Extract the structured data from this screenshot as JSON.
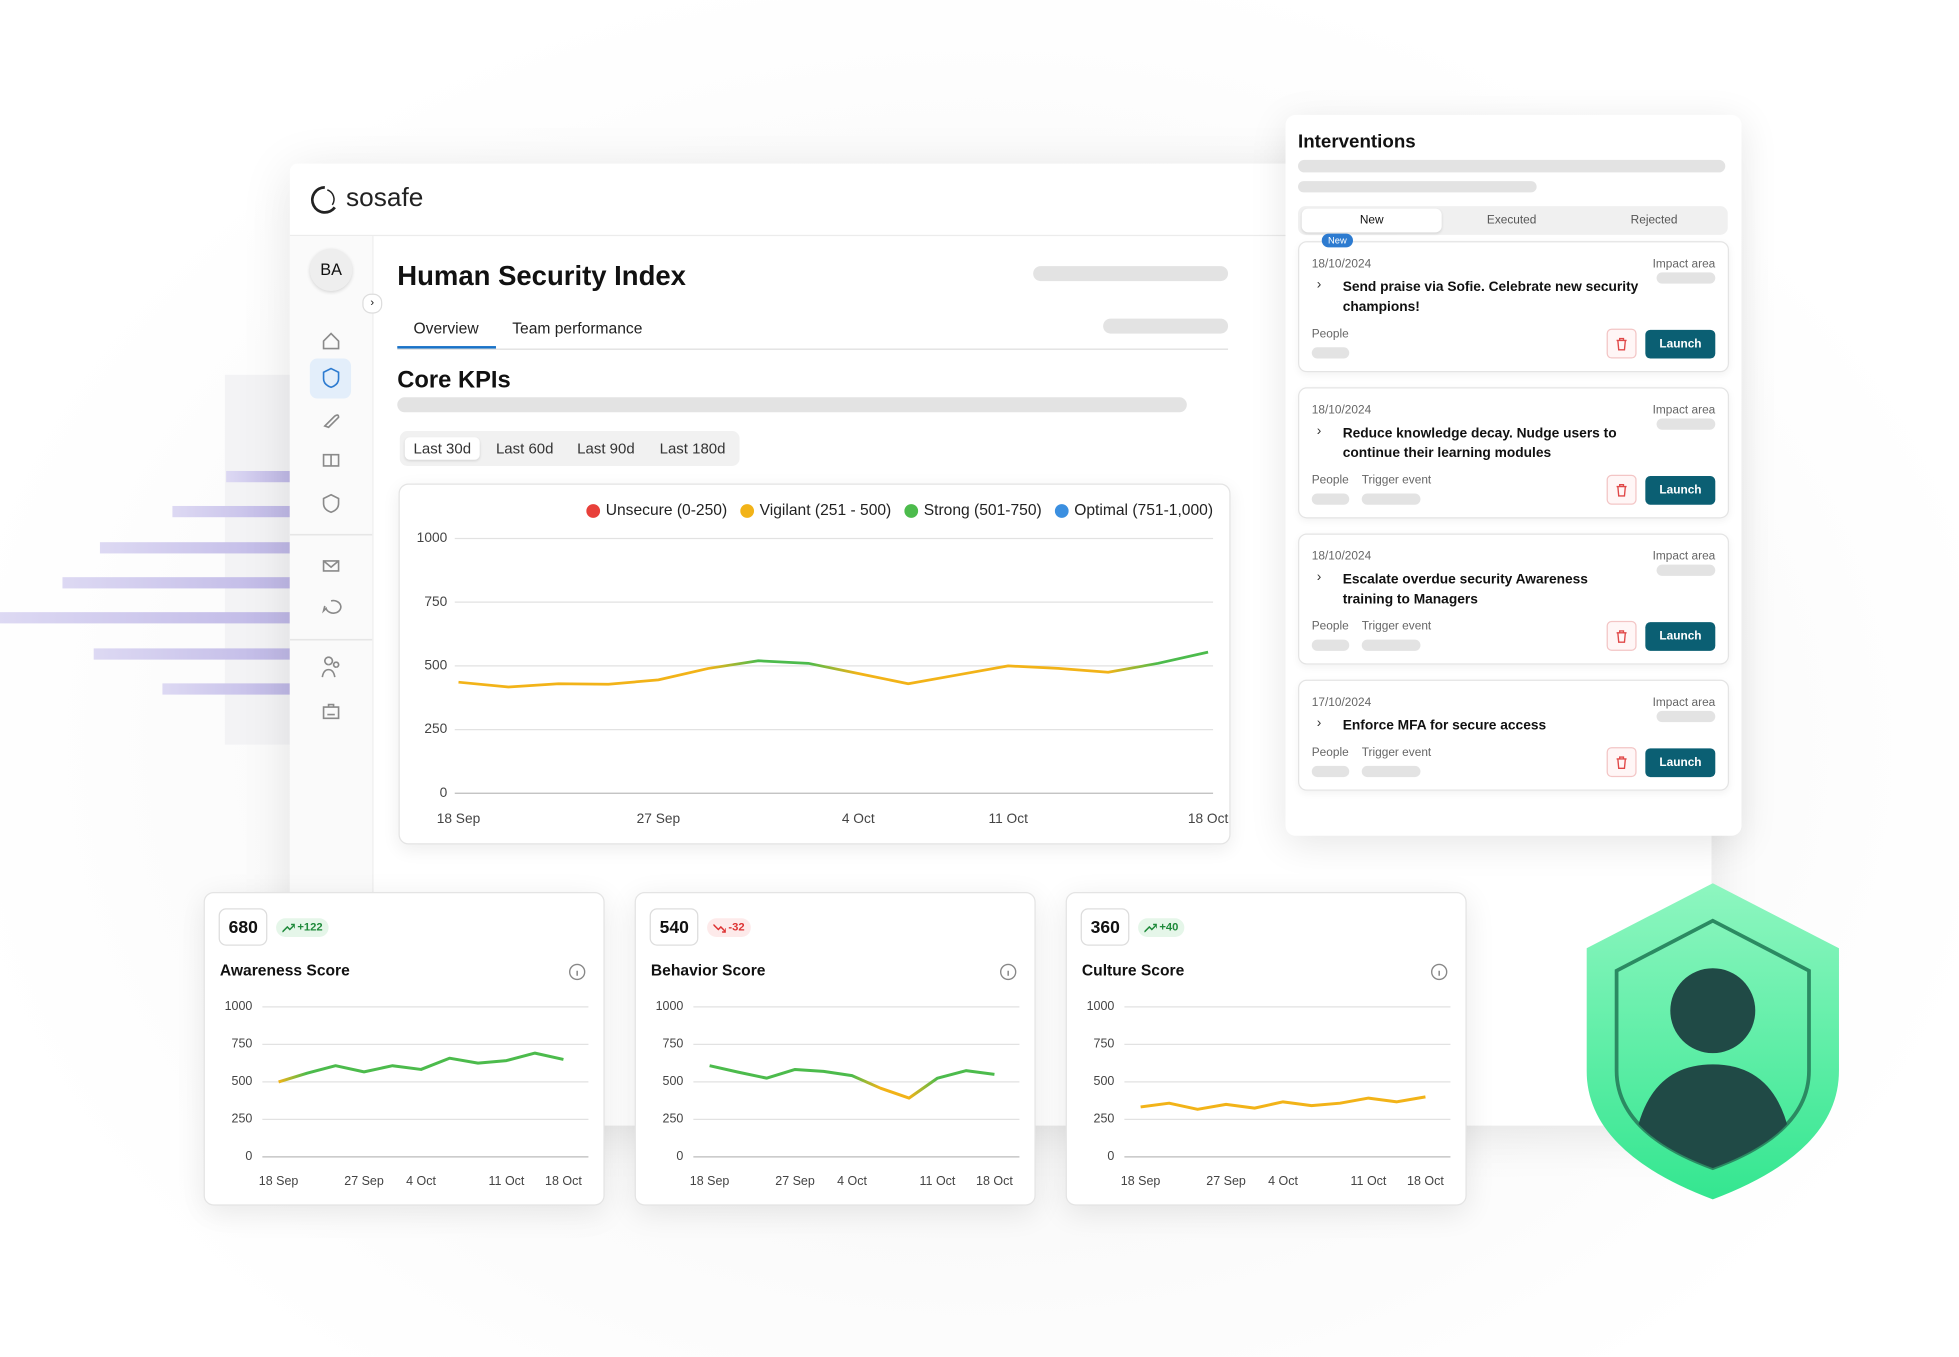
{
  "brand": "sosafe",
  "user_initials": "BA",
  "header": {
    "title": "Human Security Index",
    "tabs": [
      "Overview",
      "Team performance"
    ]
  },
  "section_title": "Core KPIs",
  "time_ranges": [
    "Last 30d",
    "Last 60d",
    "Last 90d",
    "Last 180d"
  ],
  "chart_data": [
    {
      "type": "line",
      "legend": [
        {
          "name": "Unsecure (0-250)",
          "color": "#e8403a",
          "range": [
            0,
            250
          ]
        },
        {
          "name": "Vigilant (251 - 500)",
          "color": "#f2b318",
          "range": [
            251,
            500
          ]
        },
        {
          "name": "Strong (501-750)",
          "color": "#4cbb4c",
          "range": [
            501,
            750
          ]
        },
        {
          "name": "Optimal (751-1,000)",
          "color": "#3b8fe0",
          "range": [
            751,
            1000
          ]
        }
      ],
      "categories": [
        "18 Sep",
        null,
        null,
        null,
        "27 Sep",
        null,
        null,
        null,
        "4 Oct",
        null,
        null,
        "11 Oct",
        null,
        null,
        null,
        "18 Oct"
      ],
      "values": [
        436,
        417,
        430,
        428,
        445,
        490,
        520,
        510,
        470,
        430,
        465,
        500,
        490,
        475,
        510,
        554
      ],
      "ylim": [
        0,
        1000
      ],
      "yticks": [
        0,
        250,
        500,
        750,
        1000
      ],
      "grid": true
    },
    {
      "type": "line",
      "title": "Awareness Score",
      "score": 680,
      "change": "+122",
      "trend": "up",
      "categories": [
        "18 Sep",
        null,
        null,
        "27 Sep",
        null,
        "4 Oct",
        null,
        null,
        "11 Oct",
        null,
        "18 Oct"
      ],
      "values": [
        500,
        558,
        608,
        567,
        608,
        583,
        658,
        625,
        642,
        692,
        650
      ],
      "ylim": [
        0,
        1000
      ],
      "yticks": [
        0,
        250,
        500,
        750,
        1000
      ],
      "grid": true
    },
    {
      "type": "line",
      "title": "Behavior Score",
      "score": 540,
      "change": "-32",
      "trend": "down",
      "categories": [
        "18 Sep",
        null,
        null,
        "27 Sep",
        null,
        "4 Oct",
        null,
        null,
        "11 Oct",
        null,
        "18 Oct"
      ],
      "values": [
        608,
        565,
        525,
        583,
        570,
        542,
        458,
        392,
        525,
        575,
        550
      ],
      "ylim": [
        0,
        1000
      ],
      "yticks": [
        0,
        250,
        500,
        750,
        1000
      ],
      "grid": true
    },
    {
      "type": "line",
      "title": "Culture Score",
      "score": 360,
      "change": "+40",
      "trend": "up",
      "categories": [
        "18 Sep",
        null,
        null,
        "27 Sep",
        null,
        "4 Oct",
        null,
        null,
        "11 Oct",
        null,
        "18 Oct"
      ],
      "values": [
        333,
        358,
        317,
        350,
        325,
        367,
        342,
        358,
        392,
        367,
        400
      ],
      "ylim": [
        0,
        1000
      ],
      "yticks": [
        0,
        250,
        500,
        750,
        1000
      ],
      "grid": true
    }
  ],
  "interventions": {
    "title": "Interventions",
    "tabs": [
      "New",
      "Executed",
      "Rejected"
    ],
    "items": [
      {
        "badge": "New",
        "date": "18/10/2024",
        "title": "Send praise via Sofie. Celebrate new security champions!",
        "impact_label": "Impact area",
        "tags": [
          "People"
        ],
        "action": "Launch"
      },
      {
        "date": "18/10/2024",
        "title": "Reduce knowledge decay. Nudge users to continue their learning modules",
        "impact_label": "Impact area",
        "tags": [
          "People",
          "Trigger event"
        ],
        "action": "Launch"
      },
      {
        "date": "18/10/2024",
        "title": "Escalate overdue security Awareness training to Managers",
        "impact_label": "Impact area",
        "tags": [
          "People",
          "Trigger event"
        ],
        "action": "Launch"
      },
      {
        "date": "17/10/2024",
        "title": "Enforce MFA for secure access",
        "impact_label": "Impact area",
        "tags": [
          "People",
          "Trigger event"
        ],
        "action": "Launch"
      }
    ]
  }
}
